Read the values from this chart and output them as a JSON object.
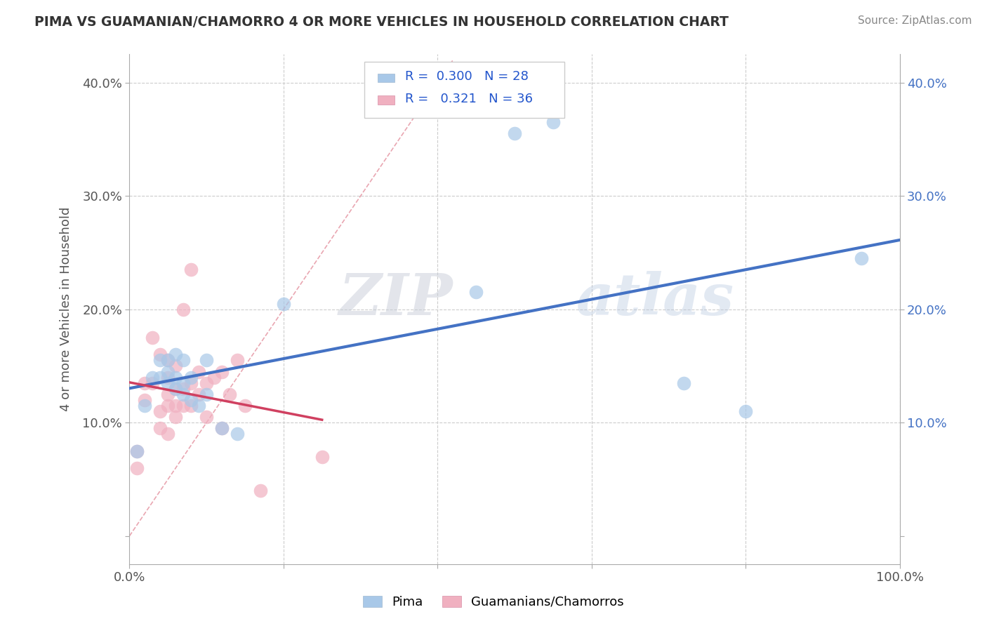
{
  "title": "PIMA VS GUAMANIAN/CHAMORRO 4 OR MORE VEHICLES IN HOUSEHOLD CORRELATION CHART",
  "source": "Source: ZipAtlas.com",
  "ylabel": "4 or more Vehicles in Household",
  "xlim": [
    0,
    1.0
  ],
  "ylim": [
    -0.025,
    0.425
  ],
  "xticks": [
    0.0,
    0.2,
    0.4,
    0.6,
    0.8,
    1.0
  ],
  "xticklabels": [
    "0.0%",
    "",
    "",
    "",
    "",
    "100.0%"
  ],
  "yticks": [
    0.0,
    0.1,
    0.2,
    0.3,
    0.4
  ],
  "yticklabels": [
    "",
    "10.0%",
    "20.0%",
    "30.0%",
    "40.0%"
  ],
  "legend_labels": [
    "Pima",
    "Guamanians/Chamorros"
  ],
  "color_pima": "#a8c8e8",
  "color_guam": "#f0b0c0",
  "color_pima_line": "#4472c4",
  "color_guam_line": "#d04060",
  "color_diag": "#e08090",
  "watermark_zip": "ZIP",
  "watermark_atlas": "atlas",
  "pima_x": [
    0.01,
    0.02,
    0.03,
    0.04,
    0.04,
    0.05,
    0.05,
    0.05,
    0.06,
    0.06,
    0.06,
    0.07,
    0.07,
    0.07,
    0.08,
    0.08,
    0.09,
    0.1,
    0.1,
    0.12,
    0.14,
    0.2,
    0.45,
    0.5,
    0.55,
    0.72,
    0.8,
    0.95
  ],
  "pima_y": [
    0.075,
    0.115,
    0.14,
    0.14,
    0.155,
    0.135,
    0.145,
    0.155,
    0.13,
    0.14,
    0.16,
    0.125,
    0.135,
    0.155,
    0.12,
    0.14,
    0.115,
    0.125,
    0.155,
    0.095,
    0.09,
    0.205,
    0.215,
    0.355,
    0.365,
    0.135,
    0.11,
    0.245
  ],
  "guam_x": [
    0.01,
    0.01,
    0.02,
    0.02,
    0.03,
    0.03,
    0.04,
    0.04,
    0.04,
    0.05,
    0.05,
    0.05,
    0.05,
    0.05,
    0.06,
    0.06,
    0.06,
    0.06,
    0.07,
    0.07,
    0.07,
    0.08,
    0.08,
    0.08,
    0.09,
    0.09,
    0.1,
    0.1,
    0.11,
    0.12,
    0.12,
    0.13,
    0.14,
    0.15,
    0.17,
    0.25
  ],
  "guam_y": [
    0.06,
    0.075,
    0.12,
    0.135,
    0.135,
    0.175,
    0.095,
    0.11,
    0.16,
    0.09,
    0.115,
    0.125,
    0.14,
    0.155,
    0.105,
    0.115,
    0.13,
    0.15,
    0.115,
    0.13,
    0.2,
    0.115,
    0.135,
    0.235,
    0.125,
    0.145,
    0.105,
    0.135,
    0.14,
    0.095,
    0.145,
    0.125,
    0.155,
    0.115,
    0.04,
    0.07
  ]
}
